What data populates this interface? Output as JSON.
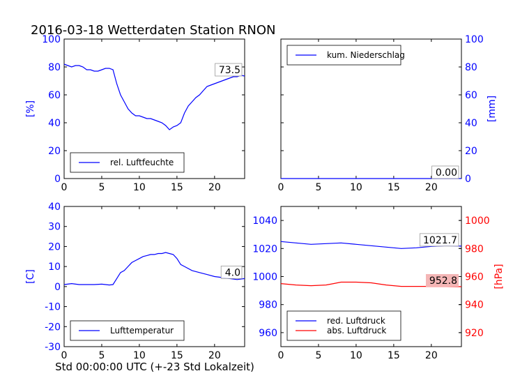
{
  "title": "2016-03-18 Wetterdaten Station RNON",
  "footer_xlabel": "Std 00:00:00 UTC (+-23 Std Lokalzeit)",
  "colors": {
    "blue": "#0000ff",
    "red": "#ff0000",
    "black": "#000000",
    "red_box": "#f4b6b6"
  },
  "chart_data": [
    {
      "type": "line",
      "panel": "top-left",
      "ylabel": "[%]",
      "xlim": [
        0,
        24
      ],
      "ylim": [
        0,
        100
      ],
      "xticks": [
        0,
        5,
        10,
        15,
        20
      ],
      "yticks": [
        0,
        20,
        40,
        60,
        80,
        100
      ],
      "legend": {
        "position": "lower-left",
        "entries": [
          "rel. Luftfeuchte"
        ]
      },
      "annotation": "73.5",
      "series": [
        {
          "name": "rel. Luftfeuchte",
          "color": "#0000ff",
          "x": [
            0,
            0.5,
            1,
            1.5,
            2,
            2.5,
            3,
            3.5,
            4,
            4.5,
            5,
            5.5,
            6,
            6.5,
            7,
            7.5,
            8,
            8.5,
            9,
            9.5,
            10,
            10.5,
            11,
            11.5,
            12,
            12.5,
            13,
            13.5,
            14,
            14.5,
            15,
            15.5,
            16,
            16.5,
            17,
            17.5,
            18,
            18.5,
            19,
            19.5,
            20,
            20.5,
            21,
            21.5,
            22,
            22.5,
            23,
            23.5,
            24
          ],
          "y": [
            82,
            81,
            80,
            81,
            81,
            80,
            78,
            78,
            77,
            77,
            78,
            79,
            79,
            78,
            68,
            60,
            55,
            50,
            47,
            45,
            45,
            44,
            43,
            43,
            42,
            41,
            40,
            38,
            35,
            37,
            38,
            40,
            47,
            52,
            55,
            58,
            60,
            63,
            66,
            67,
            68,
            69,
            70,
            71,
            72,
            73,
            73,
            74,
            73.5
          ]
        }
      ]
    },
    {
      "type": "line",
      "panel": "top-right",
      "ylabel": "[mm]",
      "xlim": [
        0,
        24
      ],
      "ylim": [
        0,
        100
      ],
      "xticks": [
        0,
        5,
        10,
        15,
        20
      ],
      "yticks": [
        0,
        20,
        40,
        60,
        80,
        100
      ],
      "legend": {
        "position": "upper-left",
        "entries": [
          "kum. Niederschlag"
        ]
      },
      "annotation": "0.00",
      "series": [
        {
          "name": "kum. Niederschlag",
          "color": "#0000ff",
          "x": [
            0,
            24
          ],
          "y": [
            0,
            0
          ]
        }
      ]
    },
    {
      "type": "line",
      "panel": "bottom-left",
      "ylabel": "[C]",
      "xlim": [
        0,
        24
      ],
      "ylim": [
        -30,
        40
      ],
      "xticks": [
        0,
        5,
        10,
        15,
        20
      ],
      "yticks": [
        -30,
        -20,
        -10,
        0,
        10,
        20,
        30,
        40
      ],
      "legend": {
        "position": "lower-left",
        "entries": [
          "Lufttemperatur"
        ]
      },
      "annotation": "4.0",
      "series": [
        {
          "name": "Lufttemperatur",
          "color": "#0000ff",
          "x": [
            0,
            1,
            2,
            3,
            4,
            5,
            6,
            6.5,
            7,
            7.5,
            8,
            8.5,
            9,
            9.5,
            10,
            10.5,
            11,
            11.5,
            12,
            12.5,
            13,
            13.5,
            14,
            14.5,
            15,
            15.5,
            16,
            17,
            18,
            19,
            20,
            21,
            22,
            23,
            24
          ],
          "y": [
            1,
            1.5,
            1,
            1,
            1,
            1.2,
            0.8,
            1,
            4,
            7,
            8,
            10,
            12,
            13,
            14,
            15,
            15.5,
            16,
            16,
            16.5,
            16.5,
            17,
            16.5,
            16,
            14,
            11,
            10,
            8,
            7,
            6,
            5,
            4.5,
            4,
            3.5,
            4
          ]
        }
      ]
    },
    {
      "type": "line",
      "panel": "bottom-right",
      "ylabel_right": "[hPa]",
      "xlim": [
        0,
        24
      ],
      "ylim_left": [
        950,
        1050
      ],
      "ylim_right": [
        910,
        1010
      ],
      "xticks": [
        0,
        5,
        10,
        15,
        20
      ],
      "yticks_left": [
        960,
        980,
        1000,
        1020,
        1040
      ],
      "yticks_right": [
        920,
        940,
        960,
        980,
        1000
      ],
      "legend": {
        "position": "lower-left",
        "entries": [
          "red. Luftdruck",
          "abs. Luftdruck"
        ]
      },
      "annotations": [
        "1021.7",
        "952.8"
      ],
      "series": [
        {
          "name": "red. Luftdruck",
          "color": "#0000ff",
          "axis": "left",
          "x": [
            0,
            2,
            4,
            6,
            8,
            10,
            12,
            14,
            16,
            18,
            20,
            22,
            24
          ],
          "y": [
            1025,
            1024,
            1023,
            1023.5,
            1024,
            1023,
            1022,
            1021,
            1020,
            1020.5,
            1021.5,
            1022,
            1021.7
          ]
        },
        {
          "name": "abs. Luftdruck",
          "color": "#ff0000",
          "axis": "right",
          "x": [
            0,
            2,
            4,
            6,
            7,
            8,
            10,
            12,
            14,
            16,
            18,
            20,
            22,
            24
          ],
          "y": [
            955,
            954,
            953.5,
            954,
            955,
            956,
            956,
            955.5,
            954,
            953,
            953,
            953,
            953,
            952.8
          ]
        }
      ]
    }
  ]
}
